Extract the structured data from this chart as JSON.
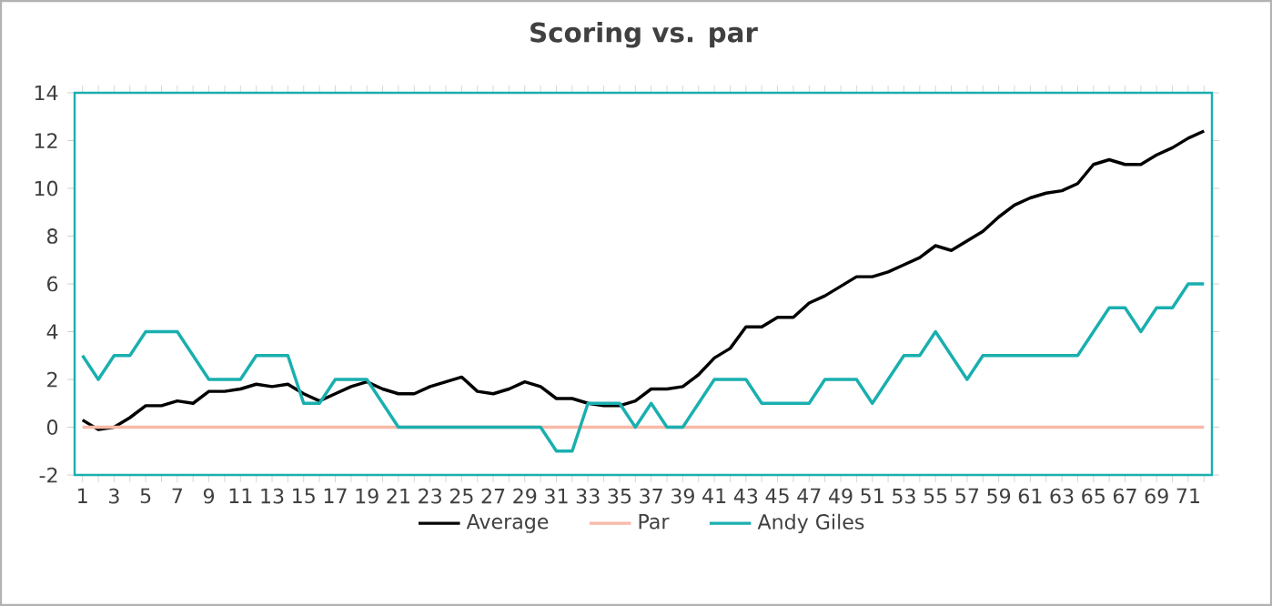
{
  "chart_data": {
    "type": "line",
    "title": "Scoring vs. par",
    "categories": [
      "1",
      null,
      "3",
      null,
      "5",
      null,
      "7",
      null,
      "9",
      null,
      "11",
      null,
      "13",
      null,
      "15",
      null,
      "17",
      null,
      "19",
      null,
      "21",
      null,
      "23",
      null,
      "25",
      null,
      "27",
      null,
      "29",
      null,
      "31",
      null,
      "33",
      null,
      "35",
      null,
      "37",
      null,
      "39",
      null,
      "41",
      null,
      "43",
      null,
      "45",
      null,
      "47",
      null,
      "49",
      null,
      "51",
      null,
      "53",
      null,
      "55",
      null,
      "57",
      null,
      "59",
      null,
      "61",
      null,
      "63",
      null,
      "65",
      null,
      "67",
      null,
      "69",
      null,
      "71",
      null
    ],
    "series": [
      {
        "name": "Average",
        "color": "#000000",
        "values": [
          0.3,
          -0.1,
          0.0,
          0.4,
          0.9,
          0.9,
          1.1,
          1.0,
          1.5,
          1.5,
          1.6,
          1.8,
          1.7,
          1.8,
          1.4,
          1.1,
          1.4,
          1.7,
          1.9,
          1.6,
          1.4,
          1.4,
          1.7,
          1.9,
          2.1,
          1.5,
          1.4,
          1.6,
          1.9,
          1.7,
          1.2,
          1.2,
          1.0,
          0.9,
          0.9,
          1.1,
          1.6,
          1.6,
          1.7,
          2.2,
          2.9,
          3.3,
          4.2,
          4.2,
          4.6,
          4.6,
          5.2,
          5.5,
          5.9,
          6.3,
          6.3,
          6.5,
          6.8,
          7.1,
          7.6,
          7.4,
          7.8,
          8.2,
          8.8,
          9.3,
          9.6,
          9.8,
          9.9,
          10.2,
          11.0,
          11.2,
          11.0,
          11.0,
          11.4,
          11.7,
          12.1,
          12.4
        ]
      },
      {
        "name": "Par",
        "color": "#f8b9a8",
        "values": [
          0,
          0,
          0,
          0,
          0,
          0,
          0,
          0,
          0,
          0,
          0,
          0,
          0,
          0,
          0,
          0,
          0,
          0,
          0,
          0,
          0,
          0,
          0,
          0,
          0,
          0,
          0,
          0,
          0,
          0,
          0,
          0,
          0,
          0,
          0,
          0,
          0,
          0,
          0,
          0,
          0,
          0,
          0,
          0,
          0,
          0,
          0,
          0,
          0,
          0,
          0,
          0,
          0,
          0,
          0,
          0,
          0,
          0,
          0,
          0,
          0,
          0,
          0,
          0,
          0,
          0,
          0,
          0,
          0,
          0,
          0,
          0
        ]
      },
      {
        "name": "Andy Giles",
        "color": "#1aafaf",
        "values": [
          3,
          2,
          3,
          3,
          4,
          4,
          4,
          3,
          2,
          2,
          2,
          3,
          3,
          3,
          1,
          1,
          2,
          2,
          2,
          1,
          0,
          0,
          0,
          0,
          0,
          0,
          0,
          0,
          0,
          0,
          -1,
          -1,
          1,
          1,
          1,
          0,
          1,
          0,
          0,
          1,
          2,
          2,
          2,
          1,
          1,
          1,
          1,
          2,
          2,
          2,
          1,
          2,
          3,
          3,
          4,
          3,
          2,
          3,
          3,
          3,
          3,
          3,
          3,
          3,
          4,
          5,
          5,
          4,
          5,
          5,
          6,
          6
        ]
      }
    ],
    "ylim": [
      -2,
      14
    ],
    "yticks": [
      -2,
      0,
      2,
      4,
      6,
      8,
      10,
      12,
      14
    ],
    "legend": "bottom"
  }
}
